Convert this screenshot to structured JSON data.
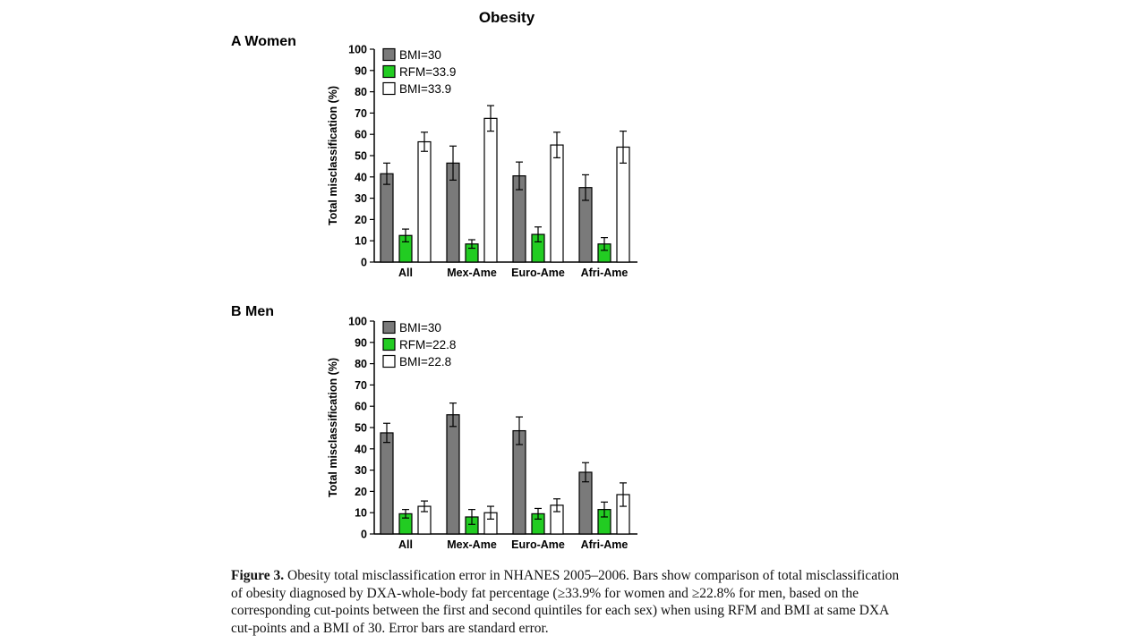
{
  "figure_title": "Obesity",
  "caption": {
    "label": "Figure 3.",
    "text": "Obesity total misclassification error in NHANES 2005–2006. Bars show comparison of total misclassification of obesity diagnosed by DXA-whole-body fat percentage (≥33.9% for women and ≥22.8% for men, based on the corresponding cut-points between the first and second quintiles for each sex) when using RFM and BMI at same DXA cut-points and a BMI of 30. Error bars are standard error."
  },
  "colors": {
    "bmi30": "#7a7a7a",
    "rfm": "#22cc22",
    "bmi_cut": "#ffffff",
    "stroke": "#000000"
  },
  "chart_data": [
    {
      "type": "bar",
      "panel_label": "A  Women",
      "ylabel": "Total misclassification (%)",
      "ylim": [
        0,
        100
      ],
      "yticks": [
        0,
        10,
        20,
        30,
        40,
        50,
        60,
        70,
        80,
        90,
        100
      ],
      "categories": [
        "All",
        "Mex-Ame",
        "Euro-Ame",
        "Afri-Ame"
      ],
      "legend_position": "top-left",
      "series": [
        {
          "name": "BMI=30",
          "color": "#7a7a7a",
          "values": [
            41.5,
            46.5,
            40.5,
            35
          ],
          "errors": [
            5,
            8,
            6.5,
            6
          ]
        },
        {
          "name": "RFM=33.9",
          "color": "#22cc22",
          "values": [
            12.5,
            8.5,
            13,
            8.5
          ],
          "errors": [
            3,
            2,
            3.5,
            3
          ]
        },
        {
          "name": "BMI=33.9",
          "color": "#ffffff",
          "values": [
            56.5,
            67.5,
            55,
            54
          ],
          "errors": [
            4.5,
            6,
            6,
            7.5
          ]
        }
      ]
    },
    {
      "type": "bar",
      "panel_label": "B  Men",
      "ylabel": "Total misclassification (%)",
      "ylim": [
        0,
        100
      ],
      "yticks": [
        0,
        10,
        20,
        30,
        40,
        50,
        60,
        70,
        80,
        90,
        100
      ],
      "categories": [
        "All",
        "Mex-Ame",
        "Euro-Ame",
        "Afri-Ame"
      ],
      "legend_position": "top-left",
      "series": [
        {
          "name": "BMI=30",
          "color": "#7a7a7a",
          "values": [
            47.5,
            56,
            48.5,
            29
          ],
          "errors": [
            4.5,
            5.5,
            6.5,
            4.5
          ]
        },
        {
          "name": "RFM=22.8",
          "color": "#22cc22",
          "values": [
            9.5,
            8,
            9.5,
            11.5
          ],
          "errors": [
            2,
            3.5,
            2.5,
            3.5
          ]
        },
        {
          "name": "BMI=22.8",
          "color": "#ffffff",
          "values": [
            13,
            10,
            13.5,
            18.5
          ],
          "errors": [
            2.5,
            3,
            3,
            5.5
          ]
        }
      ]
    }
  ]
}
